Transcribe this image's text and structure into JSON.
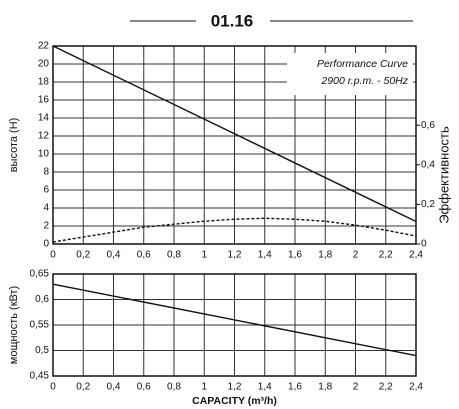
{
  "chart_data": [
    {
      "type": "line",
      "title": "01.16",
      "ylabel": "высота (Н)",
      "y2label": "Эффективность",
      "annotation": [
        "Performance Curve",
        "2900 r.p.m. - 50Hz"
      ],
      "xlim": [
        0,
        2.4
      ],
      "xticks": [
        0,
        {
          "value": 0.2,
          "label": "0,2"
        },
        {
          "value": 0.4,
          "label": "0,4"
        },
        {
          "value": 0.6,
          "label": "0,6"
        },
        {
          "value": 0.8,
          "label": "0,8"
        },
        1,
        {
          "value": 1.2,
          "label": "1,2"
        },
        {
          "value": 1.4,
          "label": "1,4"
        },
        {
          "value": 1.6,
          "label": "1,6"
        },
        {
          "value": 1.8,
          "label": "1,8"
        },
        2,
        {
          "value": 2.2,
          "label": "2,2"
        },
        {
          "value": 2.4,
          "label": "2,4"
        }
      ],
      "ylim": [
        0,
        22
      ],
      "yticks": [
        0,
        2,
        4,
        6,
        8,
        10,
        12,
        14,
        16,
        18,
        20,
        22
      ],
      "y2lim": [
        0,
        1
      ],
      "y2ticks": [
        0,
        {
          "value": 0.2,
          "label": "0,2"
        },
        {
          "value": 0.4,
          "label": "0,4"
        },
        {
          "value": 0.6,
          "label": "0,6"
        }
      ],
      "grid": true,
      "series": [
        {
          "color": "#111111",
          "x": [
            0,
            2.4
          ],
          "values": [
            22,
            2.5
          ]
        },
        {
          "color": "#111111",
          "dashed": true,
          "axis": "y2",
          "x": [
            0,
            0.2,
            0.4,
            0.6,
            0.8,
            1.0,
            1.2,
            1.4,
            1.6,
            1.8,
            2.0,
            2.2,
            2.4
          ],
          "values": [
            0.01,
            0.035,
            0.06,
            0.085,
            0.1,
            0.115,
            0.125,
            0.13,
            0.125,
            0.115,
            0.095,
            0.07,
            0.04
          ]
        }
      ]
    },
    {
      "type": "line",
      "ylabel": "мощность (кВт)",
      "xlabel": "CAPACITY (m³/h)",
      "xlim": [
        0,
        2.4
      ],
      "xticks": [
        0,
        {
          "value": 0.2,
          "label": "0,2"
        },
        {
          "value": 0.4,
          "label": "0,4"
        },
        {
          "value": 0.6,
          "label": "0,6"
        },
        {
          "value": 0.8,
          "label": "0,8"
        },
        1,
        {
          "value": 1.2,
          "label": "1,2"
        },
        {
          "value": 1.4,
          "label": "1,4"
        },
        {
          "value": 1.6,
          "label": "1,6"
        },
        {
          "value": 1.8,
          "label": "1,8"
        },
        2,
        {
          "value": 2.2,
          "label": "2,2"
        },
        {
          "value": 2.4,
          "label": "2,4"
        }
      ],
      "ylim": [
        0.45,
        0.65
      ],
      "yticks": [
        {
          "value": 0.45,
          "label": "0,45"
        },
        {
          "value": 0.5,
          "label": "0,5"
        },
        {
          "value": 0.55,
          "label": "0,55"
        },
        {
          "value": 0.6,
          "label": "0,6"
        },
        {
          "value": 0.65,
          "label": "0,65"
        }
      ],
      "grid": true,
      "series": [
        {
          "color": "#111111",
          "x": [
            0,
            2.4
          ],
          "values": [
            0.63,
            0.49
          ]
        }
      ]
    }
  ]
}
